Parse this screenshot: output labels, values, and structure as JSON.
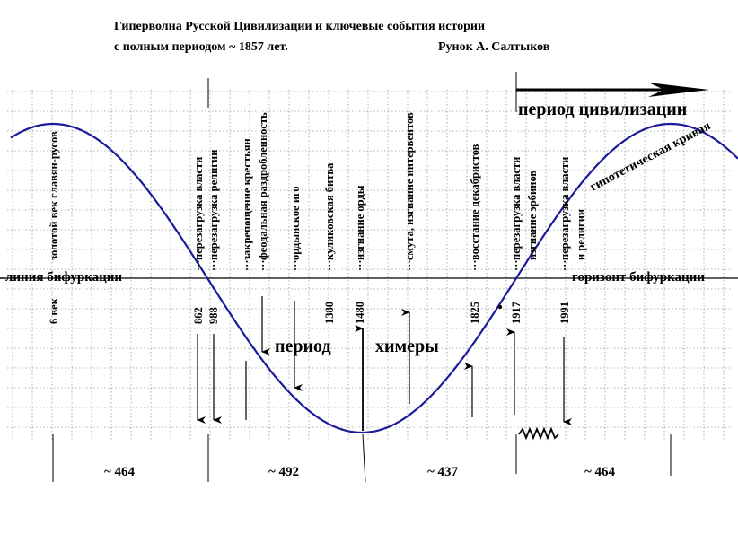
{
  "title": {
    "line1": "Гиперволна Русской Цивилизации  и ключевые события истории",
    "line2": "с полным периодом ~ 1857 лет.",
    "author": "Рунок А. Салтыков"
  },
  "axis": {
    "left_label": "линия бифуркации",
    "right_label": "горизонт бифуркации"
  },
  "labels": {
    "civilization_period": "период цивилизации",
    "chimera_period_1": "период",
    "chimera_period_2": "химеры",
    "curve": "гипотетическая кривая"
  },
  "events": [
    {
      "text": "золотой век славян-русов",
      "year": "6 век"
    },
    {
      "text": "перезагрузка власти",
      "year": "862"
    },
    {
      "text": "перезагрузка религии",
      "year": "988"
    },
    {
      "text": "закрепощение крестьян",
      "year": ""
    },
    {
      "text": "феодальная раздробленность",
      "year": ""
    },
    {
      "text": "ордынское иго",
      "year": ""
    },
    {
      "text": "куликовская битва",
      "year": "1380"
    },
    {
      "text": "изгнание орды",
      "year": "1480"
    },
    {
      "text": "смута, изгнание интервентов",
      "year": ""
    },
    {
      "text": "восстание декабристов",
      "year": "1825"
    },
    {
      "text": "перезагрузка власти",
      "year": "1917"
    },
    {
      "text": "изгнание эрбинов",
      "year": ""
    },
    {
      "text": "перезагрузка власти",
      "year": "1991"
    },
    {
      "text": "и религии",
      "year": ""
    }
  ],
  "periods": [
    "~ 464",
    "~ 492",
    "~ 437",
    "~ 464"
  ]
}
